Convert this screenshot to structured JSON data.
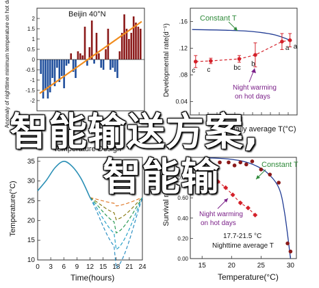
{
  "overlay": {
    "line1": "智能输送方案,",
    "line2": "智能输"
  },
  "chart_data": [
    {
      "id": "anomaly",
      "type": "bar",
      "title": "Beijin 40°N",
      "ylabel": "Anomaly of nighttime minimum temperature on hot days",
      "ylim": [
        -2.5,
        2.5
      ],
      "yticks": [
        -2,
        -1.5,
        -1,
        -0.5,
        0,
        0.5,
        1,
        1.5,
        2
      ],
      "ytick_labels": [
        "-2",
        "-1.5",
        "-1",
        "-0.5",
        "0",
        "0.5",
        "1",
        "1.5",
        "2"
      ],
      "values": [
        -0.7,
        -1.9,
        -1.5,
        -1.9,
        -1.6,
        -0.9,
        -1.3,
        -0.4,
        -1.1,
        -0.8,
        -1.4,
        -0.3,
        -0.2,
        0.3,
        -0.6,
        -0.9,
        0.4,
        0.3,
        0.2,
        1.6,
        -0.3,
        0.6,
        1.9,
        -0.2,
        1.3,
        0.3,
        -0.4,
        -0.5,
        0.5,
        1.5,
        -0.5,
        -0.4,
        -0.6,
        -0.9,
        0.4,
        1.3,
        2.2,
        1.5,
        1.0,
        1.3,
        2.1,
        1.8,
        1.6,
        1.5
      ],
      "trend": [
        -1.65,
        1.85
      ],
      "colors": {
        "positive": "#8b1a1a",
        "negative": "#1f4e9c",
        "trend": "#f08c1e"
      }
    },
    {
      "id": "development",
      "type": "line",
      "xlabel": "Daily average T(°C)",
      "ylabel": "Developmental rate(d⁻¹)",
      "xlim": [
        17,
        29
      ],
      "xticks": [
        17,
        18,
        19,
        20,
        21,
        22,
        23,
        24,
        25,
        26,
        27,
        28,
        29
      ],
      "xtick_labels": [
        "",
        "",
        "",
        "",
        "",
        "",
        "",
        "",
        "",
        "",
        "",
        "",
        ""
      ],
      "ylim": [
        0.02,
        0.18
      ],
      "yticks": [
        0.04,
        0.08,
        0.12,
        0.16
      ],
      "ytick_labels": [
        "0.04",
        ".08",
        ".12",
        ".16"
      ],
      "series": [
        {
          "name": "Constant T",
          "x": [
            17.2,
            21,
            24,
            26.5,
            28.4
          ],
          "y": [
            0.148,
            0.147,
            0.145,
            0.14,
            0.131
          ],
          "color": "#1f3a93"
        },
        {
          "name": "Night warming on hot days",
          "x": [
            17.6,
            19.3,
            22.5,
            24.3,
            27.3,
            28.2
          ],
          "y": [
            0.1,
            0.101,
            0.104,
            0.11,
            0.13,
            0.132
          ],
          "err": [
            0.009,
            0.004,
            0.005,
            0.018,
            0.012,
            0.01
          ],
          "labels": [
            "c",
            "c",
            "bc",
            "b",
            "a",
            "a"
          ],
          "color": "#d4212a"
        }
      ],
      "annotations": [
        "Constant T",
        "Night warming",
        "on hot days"
      ]
    },
    {
      "id": "design",
      "type": "line",
      "title": "Temperature Design",
      "xlabel": "Time(hours)",
      "ylabel": "Temperature(°C)",
      "xlim": [
        0,
        24
      ],
      "xticks": [
        0,
        3,
        6,
        9,
        12,
        15,
        18,
        21,
        24
      ],
      "xtick_labels": [
        "0",
        "3",
        "6",
        "9",
        "12",
        "15",
        "18",
        "21",
        "24"
      ],
      "ylim": [
        10,
        36
      ],
      "yticks": [
        10,
        15,
        20,
        25,
        30,
        35
      ],
      "ytick_labels": [
        "10",
        "15",
        "20",
        "25",
        "30",
        "35"
      ],
      "curve": {
        "x": [
          0,
          2,
          4,
          6,
          8,
          10,
          12
        ],
        "y": [
          27.5,
          30.2,
          33.4,
          35,
          33.6,
          30.5,
          25.8
        ],
        "color": "#2a8fb5"
      },
      "night_curves": [
        {
          "minimum": 24.3,
          "color": "#e07b2c"
        },
        {
          "minimum": 21.8,
          "color": "#8a7d18"
        },
        {
          "minimum": 19.4,
          "color": "#2e9b57"
        },
        {
          "minimum": 16.4,
          "color": "#27a2c8"
        },
        {
          "minimum": 13.0,
          "color": "#2c8fc2"
        }
      ]
    },
    {
      "id": "survival",
      "type": "scatter",
      "xlabel": "Temperature(°C)",
      "ylabel": "Survival rate",
      "xlim": [
        13,
        31
      ],
      "xticks": [
        15,
        20,
        25,
        30
      ],
      "xtick_labels": [
        "15",
        "20",
        "25",
        "30"
      ],
      "ylim": [
        0,
        1
      ],
      "yticks": [
        0,
        0.2,
        0.4,
        0.6,
        0.8
      ],
      "ytick_labels": [
        "0.00",
        "0.20",
        "0.40",
        "0.60",
        "0.80"
      ],
      "series": [
        {
          "name": "Constant T",
          "x": [
            18,
            19.5,
            20.5,
            21.5,
            22.5,
            23.5,
            25,
            26.5,
            28,
            29.5,
            30
          ],
          "y": [
            0.95,
            0.95,
            0.92,
            0.95,
            0.93,
            0.96,
            0.88,
            0.83,
            0.75,
            0.15,
            0.07
          ],
          "color": "#8b1a1a"
        },
        {
          "name": "Night warming on hot days",
          "x": [
            17.7,
            19,
            20.2,
            21.5,
            22.8,
            24
          ],
          "y": [
            0.76,
            0.7,
            0.63,
            0.55,
            0.5,
            0.43
          ],
          "color": "#d4212a"
        }
      ],
      "fit": {
        "x": [
          16,
          18,
          20,
          22,
          24,
          26,
          28,
          29,
          30
        ],
        "y": [
          0.995,
          0.99,
          0.98,
          0.96,
          0.92,
          0.85,
          0.7,
          0.45,
          0
        ]
      },
      "annotations": [
        "Constant T",
        "Night warming",
        "on hot days",
        "17.7-21.5 °C",
        "Nighttime average T"
      ]
    }
  ]
}
